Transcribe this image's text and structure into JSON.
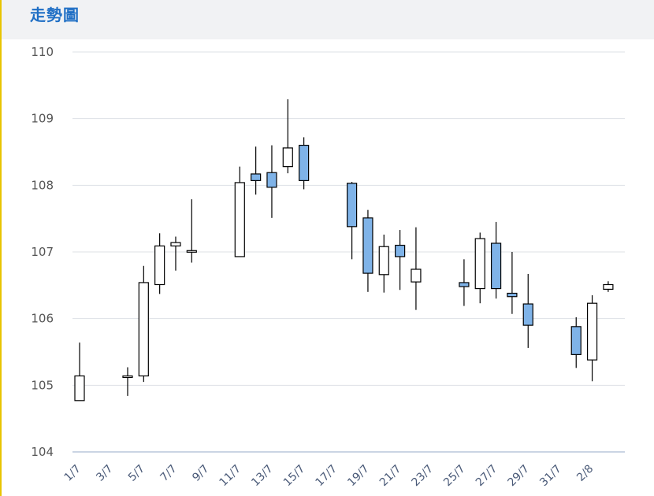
{
  "header": {
    "title": "走勢圖"
  },
  "colors": {
    "up_fill": "#ffffff",
    "down_fill": "#7fb3e8",
    "stroke": "#000000",
    "grid": "#dde1e6",
    "axis": "#b9c7dc"
  },
  "chart_data": {
    "type": "candlestick",
    "ylim": [
      104,
      110
    ],
    "yticks": [
      104,
      105,
      106,
      107,
      108,
      109,
      110
    ],
    "grid": true,
    "xtick_labels": [
      "1/7",
      "3/7",
      "5/7",
      "7/7",
      "9/7",
      "11/7",
      "13/7",
      "15/7",
      "17/7",
      "19/7",
      "21/7",
      "23/7",
      "25/7",
      "27/7",
      "29/7",
      "31/7",
      "2/8"
    ],
    "candles": [
      {
        "date": "1/7",
        "open": 104.77,
        "high": 105.64,
        "low": 104.77,
        "close": 105.14
      },
      {
        "date": "4/7",
        "open": 105.14,
        "high": 105.27,
        "low": 104.84,
        "close": 105.14
      },
      {
        "date": "5/7",
        "open": 105.14,
        "high": 106.79,
        "low": 105.05,
        "close": 106.54
      },
      {
        "date": "6/7",
        "open": 106.51,
        "high": 107.28,
        "low": 106.37,
        "close": 107.09
      },
      {
        "date": "7/7",
        "open": 107.09,
        "high": 107.23,
        "low": 106.72,
        "close": 107.14
      },
      {
        "date": "8/7",
        "open": 107.02,
        "high": 107.79,
        "low": 106.84,
        "close": 107.02
      },
      {
        "date": "11/7",
        "open": 106.93,
        "high": 108.28,
        "low": 106.93,
        "close": 108.04
      },
      {
        "date": "12/7",
        "open": 108.17,
        "high": 108.58,
        "low": 107.86,
        "close": 108.07
      },
      {
        "date": "13/7",
        "open": 108.19,
        "high": 108.6,
        "low": 107.51,
        "close": 107.97
      },
      {
        "date": "14/7",
        "open": 108.28,
        "high": 109.29,
        "low": 108.18,
        "close": 108.56
      },
      {
        "date": "15/7",
        "open": 108.6,
        "high": 108.72,
        "low": 107.94,
        "close": 108.07
      },
      {
        "date": "18/7",
        "open": 108.03,
        "high": 108.05,
        "low": 106.89,
        "close": 107.38
      },
      {
        "date": "19/7",
        "open": 107.51,
        "high": 107.63,
        "low": 106.4,
        "close": 106.68
      },
      {
        "date": "20/7",
        "open": 106.66,
        "high": 107.26,
        "low": 106.39,
        "close": 107.08
      },
      {
        "date": "21/7",
        "open": 107.1,
        "high": 107.33,
        "low": 106.43,
        "close": 106.93
      },
      {
        "date": "22/7",
        "open": 106.55,
        "high": 107.37,
        "low": 106.13,
        "close": 106.74
      },
      {
        "date": "25/7",
        "open": 106.54,
        "high": 106.89,
        "low": 106.19,
        "close": 106.48
      },
      {
        "date": "26/7",
        "open": 106.45,
        "high": 107.29,
        "low": 106.23,
        "close": 107.2
      },
      {
        "date": "27/7",
        "open": 107.13,
        "high": 107.45,
        "low": 106.3,
        "close": 106.45
      },
      {
        "date": "28/7",
        "open": 106.38,
        "high": 107.0,
        "low": 106.07,
        "close": 106.33
      },
      {
        "date": "29/7",
        "open": 106.22,
        "high": 106.67,
        "low": 105.56,
        "close": 105.9
      },
      {
        "date": "1/8",
        "open": 105.88,
        "high": 106.02,
        "low": 105.26,
        "close": 105.46
      },
      {
        "date": "2/8",
        "open": 105.38,
        "high": 106.35,
        "low": 105.06,
        "close": 106.23
      },
      {
        "date": "3/8",
        "open": 106.44,
        "high": 106.56,
        "low": 106.4,
        "close": 106.51
      }
    ]
  }
}
